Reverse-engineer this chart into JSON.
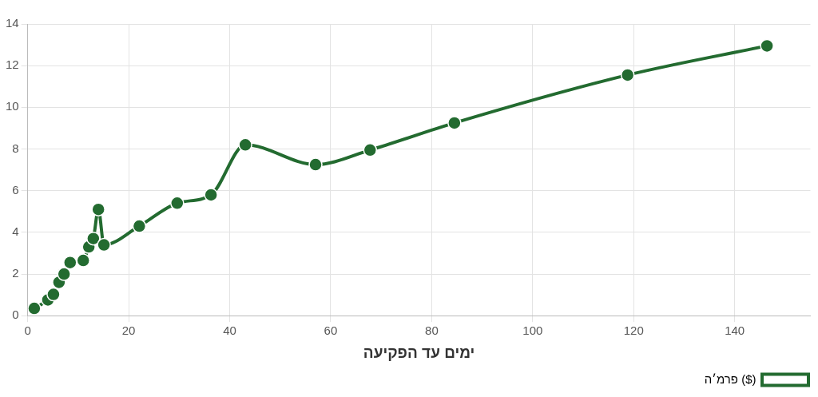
{
  "chart_data": {
    "type": "line",
    "xlabel": "ימים עד הפקיעה",
    "x": [
      1.3,
      4.0,
      5.1,
      6.2,
      7.2,
      8.4,
      11.0,
      12.1,
      13.0,
      14.0,
      15.1,
      22.1,
      29.6,
      36.3,
      43.1,
      57.0,
      67.8,
      84.5,
      118.8,
      146.4
    ],
    "series": [
      {
        "name": "פרמ׳ה ($)",
        "color": "#236b30",
        "values": [
          0.35,
          0.76,
          1.02,
          1.6,
          2.0,
          2.55,
          2.65,
          3.3,
          3.7,
          5.1,
          3.4,
          4.3,
          5.4,
          5.8,
          8.2,
          7.25,
          7.95,
          9.25,
          11.55,
          12.95
        ]
      }
    ],
    "xlim": [
      0,
      155
    ],
    "xticks": [
      0,
      20,
      40,
      60,
      80,
      100,
      120,
      140
    ],
    "ylim": [
      0,
      14
    ],
    "yticks": [
      0,
      2,
      4,
      6,
      8,
      10,
      12,
      14
    ],
    "grid": true,
    "legend": "bottom right",
    "marker": "circle",
    "line_style": "solid"
  }
}
